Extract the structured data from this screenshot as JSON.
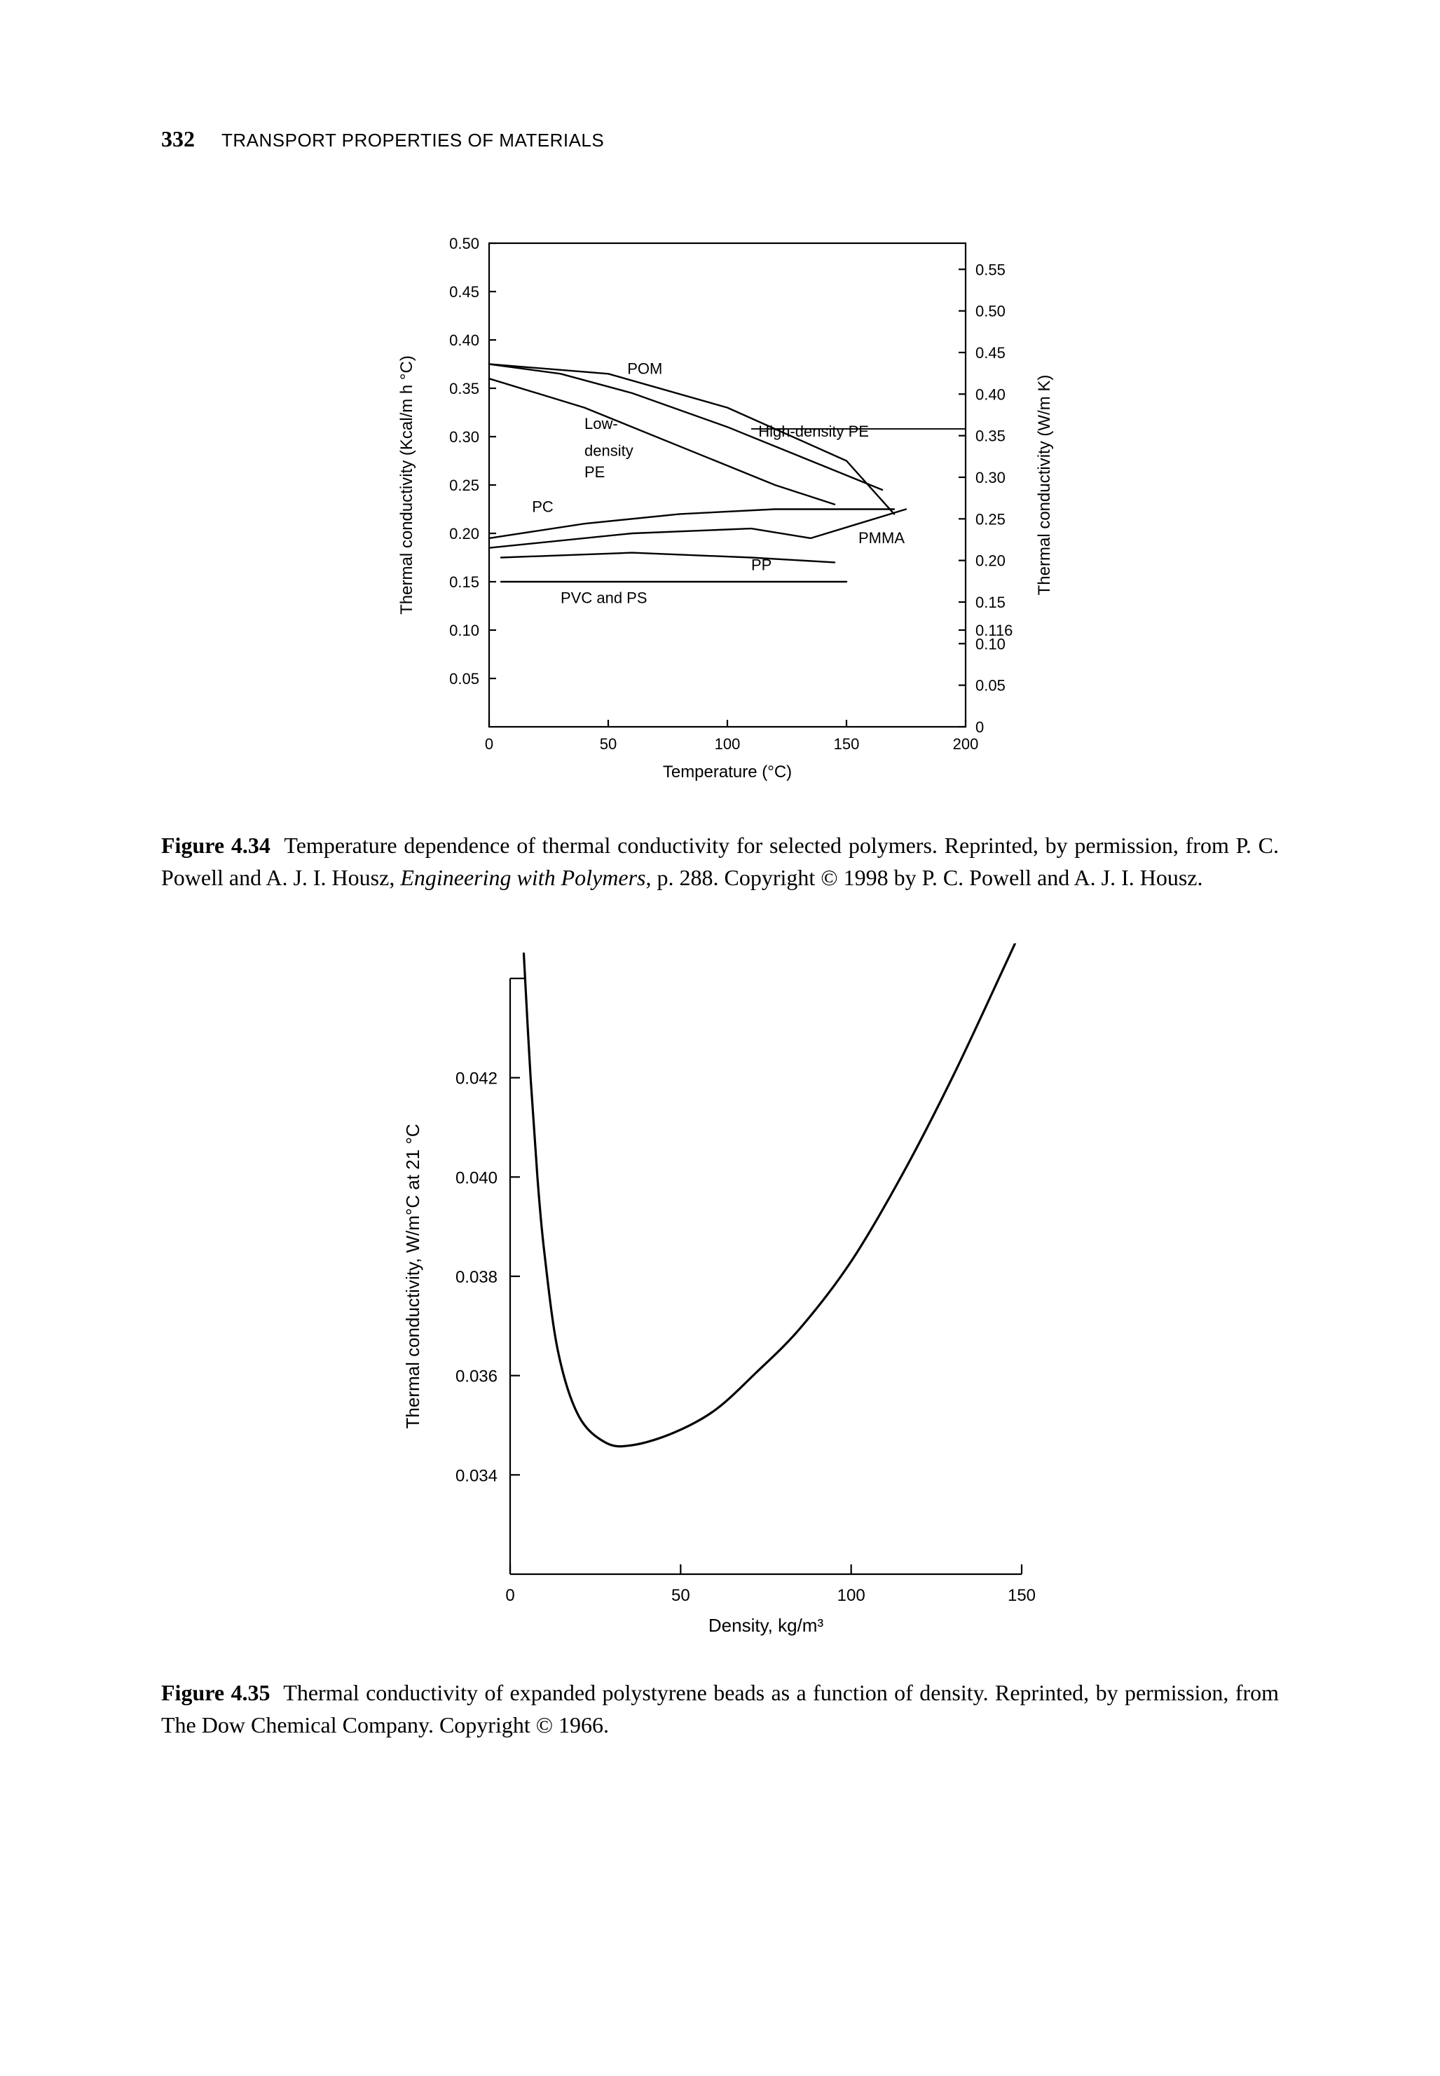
{
  "page": {
    "number": "332",
    "running_head": "TRANSPORT PROPERTIES OF MATERIALS"
  },
  "fig434": {
    "type": "line",
    "caption_label": "Figure 4.34",
    "caption_body": "Temperature dependence of thermal conductivity for selected polymers. Reprinted, by permission, from P. C. Powell and A. J. I. Housz, ",
    "caption_italic": "Engineering with Polymers",
    "caption_tail": ", p. 288. Copy­right © 1998 by P. C. Powell and A. J. I. Housz.",
    "xlabel": "Temperature (°C)",
    "ylabel_left": "Thermal conductivity (Kcal/m h °C)",
    "ylabel_right": "Thermal conductivity (W/m K)",
    "xlim": [
      0,
      200
    ],
    "ylim_left": [
      0,
      0.5
    ],
    "xtick_step": 50,
    "ytick_left_step": 0.05,
    "ytick_left_labels": [
      "0.05",
      "0.10",
      "0.15",
      "0.20",
      "0.25",
      "0.30",
      "0.35",
      "0.40",
      "0.45",
      "0.50"
    ],
    "ytick_right_labels": [
      "0",
      "0.05",
      "0.10",
      "0.116",
      "0.15",
      "0.20",
      "0.25",
      "0.30",
      "0.35",
      "0.40",
      "0.45",
      "0.50",
      "0.55"
    ],
    "ytick_right_positions": [
      0,
      0.043,
      0.086,
      0.1,
      0.129,
      0.172,
      0.215,
      0.258,
      0.301,
      0.344,
      0.387,
      0.43,
      0.473
    ],
    "background_color": "#ffffff",
    "line_color": "#000000",
    "axis_stroke_width": 2.2,
    "curve_stroke_width": 2.4,
    "label_fontsize": 22,
    "axis_title_fontsize": 24,
    "series": {
      "POM": [
        [
          0,
          0.375
        ],
        [
          50,
          0.365
        ],
        [
          100,
          0.33
        ],
        [
          150,
          0.275
        ],
        [
          170,
          0.22
        ]
      ],
      "LDPE": [
        [
          0,
          0.36
        ],
        [
          40,
          0.33
        ],
        [
          80,
          0.29
        ],
        [
          120,
          0.25
        ],
        [
          145,
          0.23
        ]
      ],
      "HDPE": [
        [
          0,
          0.375
        ],
        [
          30,
          0.365
        ],
        [
          60,
          0.345
        ],
        [
          100,
          0.31
        ],
        [
          140,
          0.27
        ],
        [
          165,
          0.245
        ]
      ],
      "PC": [
        [
          0,
          0.195
        ],
        [
          40,
          0.21
        ],
        [
          80,
          0.22
        ],
        [
          120,
          0.225
        ],
        [
          170,
          0.225
        ]
      ],
      "PMMA": [
        [
          0,
          0.185
        ],
        [
          60,
          0.2
        ],
        [
          110,
          0.205
        ],
        [
          135,
          0.195
        ],
        [
          155,
          0.21
        ],
        [
          175,
          0.225
        ]
      ],
      "PP": [
        [
          5,
          0.175
        ],
        [
          60,
          0.18
        ],
        [
          110,
          0.175
        ],
        [
          145,
          0.17
        ]
      ],
      "PVC_PS": [
        [
          5,
          0.15
        ],
        [
          150,
          0.15
        ]
      ]
    },
    "series_labels": {
      "POM": "POM",
      "LDPE_a": "Low-",
      "LDPE_b": "density",
      "LDPE_c": "PE",
      "HDPE": "High-density PE",
      "PC": "PC",
      "PMMA": "PMMA",
      "PP": "PP",
      "PVC_PS": "PVC and PS"
    }
  },
  "fig435": {
    "type": "line",
    "caption_label": "Figure 4.35",
    "caption_body": "Thermal conductivity of expanded polystyrene beads as a function of density. Reprinted, by permission, from The Dow Chemical Company. Copyright © 1966.",
    "xlabel": "Density, kg/m³",
    "ylabel": "Thermal conductivity, W/m°C at 21 °C",
    "xlim": [
      0,
      150
    ],
    "ylim": [
      0.032,
      0.044
    ],
    "xtick_step": 50,
    "ytick_step": 0.002,
    "ytick_labels": [
      "0.034",
      "0.036",
      "0.038",
      "0.040",
      "0.042"
    ],
    "background_color": "#ffffff",
    "line_color": "#000000",
    "axis_stroke_width": 2.2,
    "curve_stroke_width": 3.2,
    "label_fontsize": 24,
    "axis_title_fontsize": 26,
    "curve": [
      [
        4,
        0.0445
      ],
      [
        6,
        0.042
      ],
      [
        8,
        0.04
      ],
      [
        10,
        0.0385
      ],
      [
        14,
        0.0365
      ],
      [
        20,
        0.0352
      ],
      [
        28,
        0.03465
      ],
      [
        36,
        0.0346
      ],
      [
        48,
        0.03485
      ],
      [
        60,
        0.0353
      ],
      [
        72,
        0.03605
      ],
      [
        85,
        0.03695
      ],
      [
        100,
        0.0383
      ],
      [
        115,
        0.04005
      ],
      [
        130,
        0.04205
      ],
      [
        145,
        0.04425
      ],
      [
        150,
        0.045
      ]
    ]
  }
}
